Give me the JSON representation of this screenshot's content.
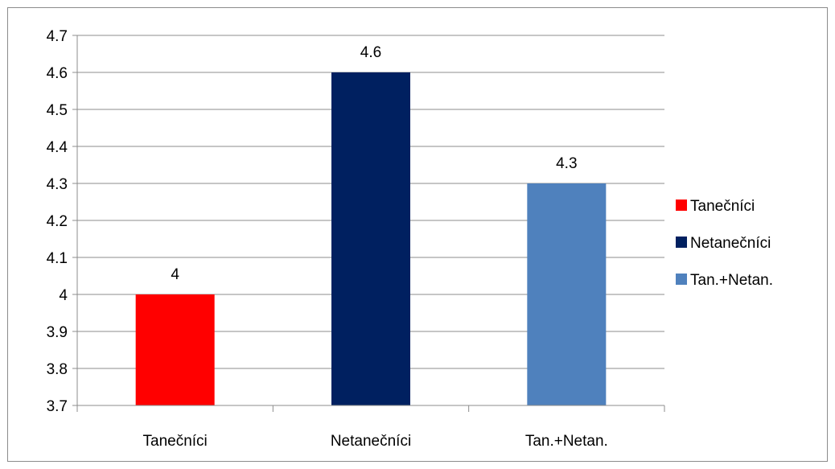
{
  "chart_data": {
    "type": "bar",
    "title": "",
    "xlabel": "",
    "ylabel": "",
    "categories": [
      "Tanečníci",
      "Netanečníci",
      "Tan.+Netan."
    ],
    "series": [
      {
        "name": "Tanečníci",
        "category": "Tanečníci",
        "value": 4,
        "color": "#ff0000"
      },
      {
        "name": "Netanečníci",
        "category": "Netanečníci",
        "value": 4.6,
        "color": "#002060"
      },
      {
        "name": "Tan.+Netan.",
        "category": "Tan.+Netan.",
        "value": 4.3,
        "color": "#4f81bd"
      }
    ],
    "data_labels": [
      "4",
      "4.6",
      "4.3"
    ],
    "ylim": [
      3.7,
      4.7
    ],
    "ytick_step": 0.1,
    "ytick_labels": [
      "3.7",
      "3.8",
      "3.9",
      "4",
      "4.1",
      "4.2",
      "4.3",
      "4.4",
      "4.5",
      "4.6",
      "4.7"
    ],
    "grid": true,
    "gridline_color": "#8c8c8c",
    "legend_position": "right"
  }
}
